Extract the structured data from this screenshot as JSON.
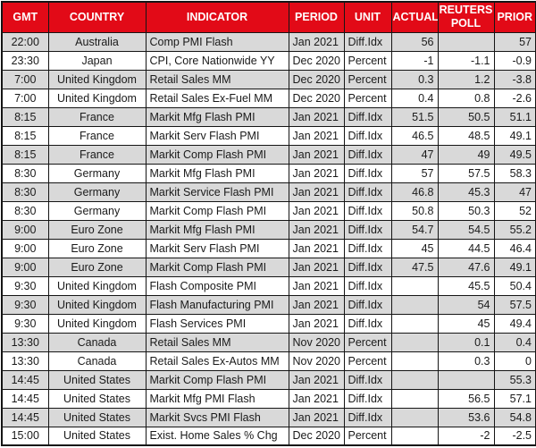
{
  "colors": {
    "header_bg": "#e20a17",
    "header_text": "#ffffff",
    "row_stripe": "#d9d9d9",
    "row_plain": "#ffffff",
    "grid_border": "#151515"
  },
  "chart_data": {
    "type": "table",
    "columns": [
      {
        "key": "gmt",
        "label": "GMT",
        "align": "center"
      },
      {
        "key": "country",
        "label": "COUNTRY",
        "align": "center"
      },
      {
        "key": "indicator",
        "label": "INDICATOR",
        "align": "left"
      },
      {
        "key": "period",
        "label": "PERIOD",
        "align": "left"
      },
      {
        "key": "unit",
        "label": "UNIT",
        "align": "left"
      },
      {
        "key": "actual",
        "label": "ACTUAL",
        "align": "right"
      },
      {
        "key": "poll",
        "label": "REUTERS POLL",
        "align": "right"
      },
      {
        "key": "prior",
        "label": "PRIOR",
        "align": "right"
      }
    ],
    "rows": [
      [
        "22:00",
        "Australia",
        "Comp PMI Flash",
        "Jan 2021",
        "Diff.Idx",
        "56",
        "",
        "57"
      ],
      [
        "23:30",
        "Japan",
        "CPI, Core Nationwide YY",
        "Dec 2020",
        "Percent",
        "-1",
        "-1.1",
        "-0.9"
      ],
      [
        "7:00",
        "United Kingdom",
        "Retail Sales MM",
        "Dec 2020",
        "Percent",
        "0.3",
        "1.2",
        "-3.8"
      ],
      [
        "7:00",
        "United Kingdom",
        "Retail Sales Ex-Fuel MM",
        "Dec 2020",
        "Percent",
        "0.4",
        "0.8",
        "-2.6"
      ],
      [
        "8:15",
        "France",
        "Markit Mfg Flash PMI",
        "Jan 2021",
        "Diff.Idx",
        "51.5",
        "50.5",
        "51.1"
      ],
      [
        "8:15",
        "France",
        "Markit Serv Flash PMI",
        "Jan 2021",
        "Diff.Idx",
        "46.5",
        "48.5",
        "49.1"
      ],
      [
        "8:15",
        "France",
        "Markit Comp Flash PMI",
        "Jan 2021",
        "Diff.Idx",
        "47",
        "49",
        "49.5"
      ],
      [
        "8:30",
        "Germany",
        "Markit Mfg Flash PMI",
        "Jan 2021",
        "Diff.Idx",
        "57",
        "57.5",
        "58.3"
      ],
      [
        "8:30",
        "Germany",
        "Markit Service Flash PMI",
        "Jan 2021",
        "Diff.Idx",
        "46.8",
        "45.3",
        "47"
      ],
      [
        "8:30",
        "Germany",
        "Markit Comp Flash PMI",
        "Jan 2021",
        "Diff.Idx",
        "50.8",
        "50.3",
        "52"
      ],
      [
        "9:00",
        "Euro Zone",
        "Markit Mfg Flash PMI",
        "Jan 2021",
        "Diff.Idx",
        "54.7",
        "54.5",
        "55.2"
      ],
      [
        "9:00",
        "Euro Zone",
        "Markit Serv Flash PMI",
        "Jan 2021",
        "Diff.Idx",
        "45",
        "44.5",
        "46.4"
      ],
      [
        "9:00",
        "Euro Zone",
        "Markit Comp Flash PMI",
        "Jan 2021",
        "Diff.Idx",
        "47.5",
        "47.6",
        "49.1"
      ],
      [
        "9:30",
        "United Kingdom",
        "Flash Composite PMI",
        "Jan 2021",
        "Diff.Idx",
        "",
        "45.5",
        "50.4"
      ],
      [
        "9:30",
        "United Kingdom",
        "Flash Manufacturing PMI",
        "Jan 2021",
        "Diff.Idx",
        "",
        "54",
        "57.5"
      ],
      [
        "9:30",
        "United Kingdom",
        "Flash Services PMI",
        "Jan 2021",
        "Diff.Idx",
        "",
        "45",
        "49.4"
      ],
      [
        "13:30",
        "Canada",
        "Retail Sales MM",
        "Nov 2020",
        "Percent",
        "",
        "0.1",
        "0.4"
      ],
      [
        "13:30",
        "Canada",
        "Retail Sales Ex-Autos MM",
        "Nov 2020",
        "Percent",
        "",
        "0.3",
        "0"
      ],
      [
        "14:45",
        "United States",
        "Markit Comp Flash PMI",
        "Jan 2021",
        "Diff.Idx",
        "",
        "",
        "55.3"
      ],
      [
        "14:45",
        "United States",
        "Markit Mfg PMI Flash",
        "Jan 2021",
        "Diff.Idx",
        "",
        "56.5",
        "57.1"
      ],
      [
        "14:45",
        "United States",
        "Markit Svcs PMI Flash",
        "Jan 2021",
        "Diff.Idx",
        "",
        "53.6",
        "54.8"
      ],
      [
        "15:00",
        "United States",
        "Exist. Home Sales % Chg",
        "Dec 2020",
        "Percent",
        "",
        "-2",
        "-2.5"
      ]
    ]
  }
}
